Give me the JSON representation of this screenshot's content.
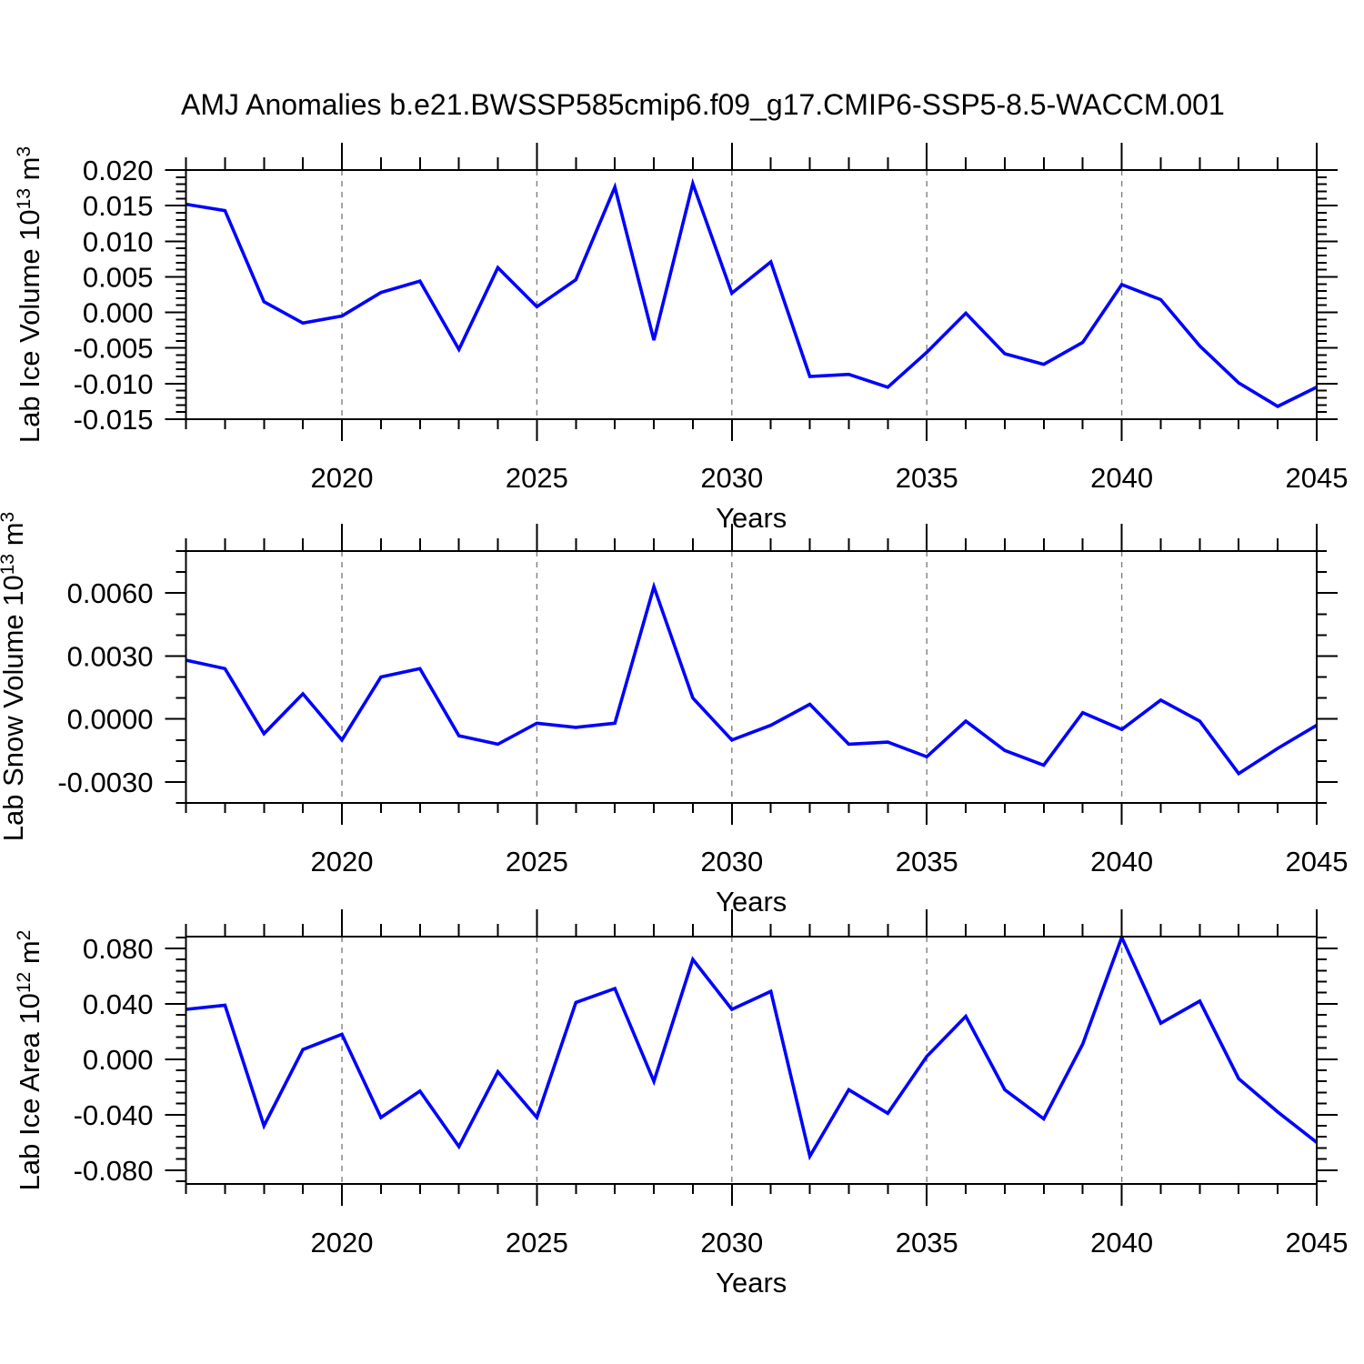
{
  "title": "AMJ Anomalies b.e21.BWSSP585cmip6.f09_g17.CMIP6-SSP5-8.5-WACCM.001",
  "colors": {
    "line": "#0000ff",
    "axis": "#000000",
    "grid": "#808080",
    "background": "#ffffff"
  },
  "chart_data": [
    {
      "type": "line",
      "name": "lab-ice-volume",
      "ylabel_parts": [
        "Lab Ice Volume 10",
        "13",
        " m",
        "3"
      ],
      "xlabel": "Years",
      "x": [
        2016,
        2017,
        2018,
        2019,
        2020,
        2021,
        2022,
        2023,
        2024,
        2025,
        2026,
        2027,
        2028,
        2029,
        2030,
        2031,
        2032,
        2033,
        2034,
        2035,
        2036,
        2037,
        2038,
        2039,
        2040,
        2041,
        2042,
        2043,
        2044,
        2045
      ],
      "values": [
        0.0152,
        0.0143,
        0.0015,
        -0.0015,
        -0.0005,
        0.0028,
        0.0044,
        -0.0052,
        0.0063,
        0.0008,
        0.0046,
        0.0176,
        -0.0039,
        0.0181,
        0.0027,
        0.0071,
        -0.009,
        -0.0087,
        -0.0105,
        -0.0056,
        -0.0001,
        -0.0058,
        -0.0073,
        -0.0042,
        0.0039,
        0.0018,
        -0.0047,
        -0.0099,
        -0.0132,
        -0.0105
      ],
      "xlim": [
        2016,
        2045
      ],
      "ylim": [
        -0.015,
        0.02
      ],
      "xticks": {
        "values": [
          2020,
          2025,
          2030,
          2035,
          2040,
          2045
        ],
        "labels": [
          "2020",
          "2025",
          "2030",
          "2035",
          "2040",
          "2045"
        ]
      },
      "yticks": {
        "values": [
          0.02,
          0.015,
          0.01,
          0.005,
          0.0,
          -0.005,
          -0.01,
          -0.015
        ],
        "labels": [
          "0.020",
          "0.015",
          "0.010",
          "0.005",
          "0.000",
          "-0.005",
          "-0.010",
          "-0.015"
        ]
      },
      "y_minor_step": 0.001,
      "x_minor_step": 1,
      "grid_x": [
        2020,
        2025,
        2030,
        2035,
        2040
      ],
      "grid_on": true,
      "legend": "none"
    },
    {
      "type": "line",
      "name": "lab-snow-volume",
      "ylabel_parts": [
        "Lab Snow Volume 10",
        "13",
        " m",
        "3"
      ],
      "xlabel": "Years",
      "x": [
        2016,
        2017,
        2018,
        2019,
        2020,
        2021,
        2022,
        2023,
        2024,
        2025,
        2026,
        2027,
        2028,
        2029,
        2030,
        2031,
        2032,
        2033,
        2034,
        2035,
        2036,
        2037,
        2038,
        2039,
        2040,
        2041,
        2042,
        2043,
        2044,
        2045
      ],
      "values": [
        0.0028,
        0.0024,
        -0.0007,
        0.0012,
        -0.001,
        0.002,
        0.0024,
        -0.0008,
        -0.0012,
        -0.0002,
        -0.0004,
        -0.0002,
        0.0063,
        0.001,
        -0.001,
        -0.0003,
        0.0007,
        -0.0012,
        -0.0011,
        -0.0018,
        -0.0001,
        -0.0015,
        -0.0022,
        0.0003,
        -0.0005,
        0.0009,
        -0.0001,
        -0.0026,
        -0.0014,
        -0.0003
      ],
      "xlim": [
        2016,
        2045
      ],
      "ylim": [
        -0.004,
        0.008
      ],
      "xticks": {
        "values": [
          2020,
          2025,
          2030,
          2035,
          2040,
          2045
        ],
        "labels": [
          "2020",
          "2025",
          "2030",
          "2035",
          "2040",
          "2045"
        ]
      },
      "yticks": {
        "values": [
          0.006,
          0.003,
          0.0,
          -0.003
        ],
        "labels": [
          "0.0060",
          "0.0030",
          "0.0000",
          "-0.0030"
        ]
      },
      "y_minor_step": 0.001,
      "x_minor_step": 1,
      "grid_x": [
        2020,
        2025,
        2030,
        2035,
        2040
      ],
      "grid_on": true,
      "legend": "none"
    },
    {
      "type": "line",
      "name": "lab-ice-area",
      "ylabel_parts": [
        "Lab Ice Area 10",
        "12",
        " m",
        "2"
      ],
      "xlabel": "Years",
      "x": [
        2016,
        2017,
        2018,
        2019,
        2020,
        2021,
        2022,
        2023,
        2024,
        2025,
        2026,
        2027,
        2028,
        2029,
        2030,
        2031,
        2032,
        2033,
        2034,
        2035,
        2036,
        2037,
        2038,
        2039,
        2040,
        2041,
        2042,
        2043,
        2044,
        2045
      ],
      "values": [
        0.036,
        0.039,
        -0.048,
        0.007,
        0.018,
        -0.042,
        -0.023,
        -0.063,
        -0.009,
        -0.042,
        0.041,
        0.051,
        -0.016,
        0.072,
        0.036,
        0.049,
        -0.07,
        -0.022,
        -0.039,
        0.002,
        0.031,
        -0.022,
        -0.043,
        0.011,
        0.088,
        0.026,
        0.042,
        -0.014,
        -0.038,
        -0.06
      ],
      "xlim": [
        2016,
        2045
      ],
      "ylim": [
        -0.09,
        0.0885
      ],
      "xticks": {
        "values": [
          2020,
          2025,
          2030,
          2035,
          2040,
          2045
        ],
        "labels": [
          "2020",
          "2025",
          "2030",
          "2035",
          "2040",
          "2045"
        ]
      },
      "yticks": {
        "values": [
          0.08,
          0.04,
          0.0,
          -0.04,
          -0.08
        ],
        "labels": [
          "0.080",
          "0.040",
          "0.000",
          "-0.040",
          "-0.080"
        ]
      },
      "y_minor_step": 0.008,
      "x_minor_step": 1,
      "grid_x": [
        2020,
        2025,
        2030,
        2035,
        2040
      ],
      "grid_on": true,
      "legend": "none"
    }
  ]
}
